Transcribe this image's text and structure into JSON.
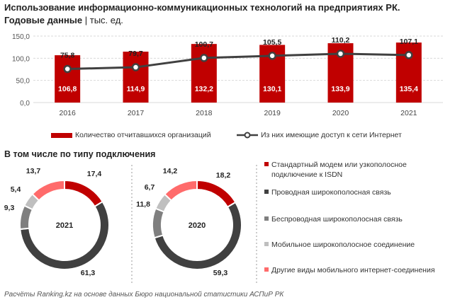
{
  "header": {
    "title": "Использование информационно-коммуникационных технологий на предприятиях РК.",
    "subtitle_bold": "Годовые данные",
    "subtitle_rest": " | тыс. ед."
  },
  "section2_title": "В том числе по типу подключения",
  "source": "Расчёты Ranking.kz на основе данных Бюро национальной статистики АСПиР РК",
  "colors": {
    "bar": "#c00000",
    "line": "#404040",
    "d_red": "#c00000",
    "d_dark": "#404040",
    "d_gray": "#7f7f7f",
    "d_light": "#bfbfbf",
    "d_pink": "#ff6b6b"
  },
  "chart_data": [
    {
      "type": "bar",
      "categories": [
        "2016",
        "2017",
        "2018",
        "2019",
        "2020",
        "2021"
      ],
      "y_ticks": [
        "0,0",
        "50,0",
        "100,0",
        "150,0"
      ],
      "ylim": [
        0,
        150
      ],
      "series": [
        {
          "name": "Количество отчитавшихся организаций",
          "type": "bar",
          "values": [
            106.8,
            114.9,
            132.2,
            130.1,
            133.9,
            135.4
          ],
          "labels": [
            "106,8",
            "114,9",
            "132,2",
            "130,1",
            "133,9",
            "135,4"
          ]
        },
        {
          "name": "Из них имеющие доступ к сети Интернет",
          "type": "line",
          "values": [
            75.8,
            79.7,
            100.7,
            105.5,
            110.2,
            107.1
          ],
          "labels": [
            "75,8",
            "79,7",
            "100,7",
            "105,5",
            "110,2",
            "107,1"
          ]
        }
      ]
    },
    {
      "type": "pie",
      "style": "donut",
      "center_label": "2021",
      "series": [
        {
          "values": [
            17.4,
            61.3,
            9.3,
            5.4,
            13.7
          ],
          "labels": [
            "17,4",
            "61,3",
            "9,3",
            "5,4",
            "13,7"
          ]
        }
      ]
    },
    {
      "type": "pie",
      "style": "donut",
      "center_label": "2020",
      "series": [
        {
          "values": [
            18.2,
            59.3,
            11.8,
            6.7,
            14.2
          ],
          "labels": [
            "18,2",
            "59,3",
            "11,8",
            "6,7",
            "14,2"
          ]
        }
      ]
    }
  ],
  "donut_legend": [
    "Стандартный модем или узкополосное подключение к ISDN",
    "Проводная широкополосная связь",
    "Беспроводная широкополосная связь",
    "Мобильное широкополосное соединение",
    "Другие виды мобильного интернет-соединения"
  ]
}
